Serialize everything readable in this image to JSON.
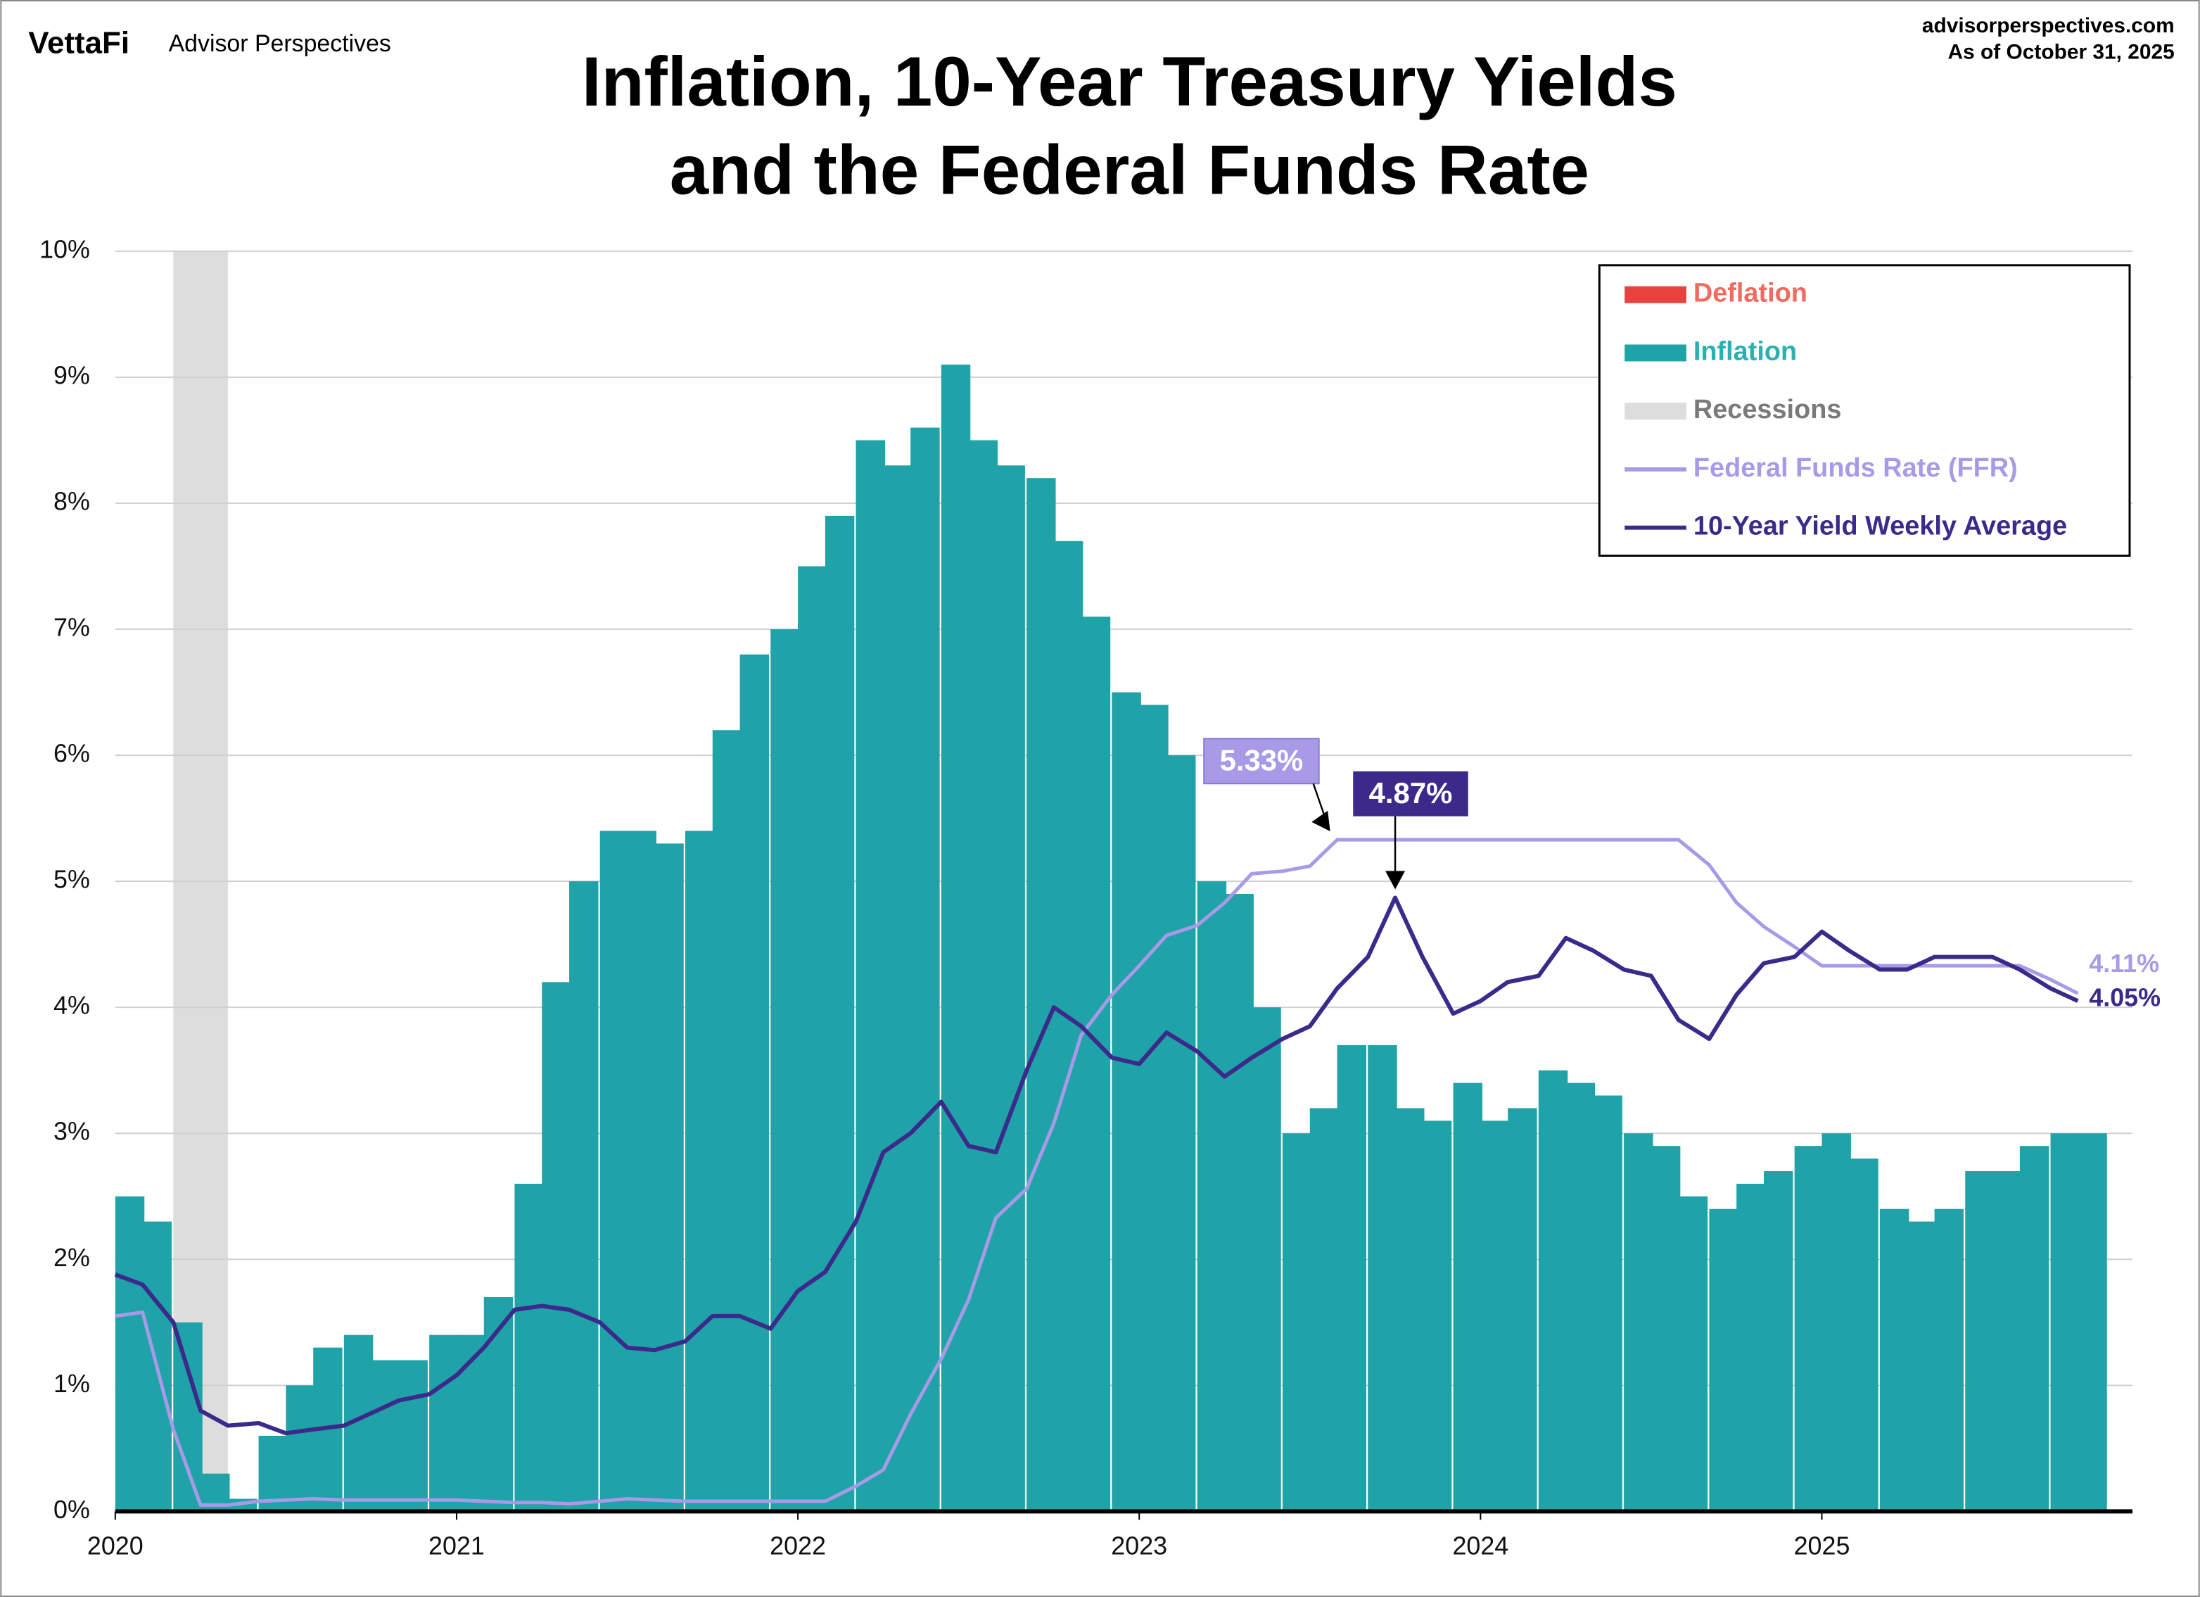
{
  "header": {
    "brand": "VettaFi",
    "brand_sub": "Advisor Perspectives",
    "site": "advisorperspectives.com",
    "date": "As of October 31, 2025"
  },
  "chart_data": {
    "type": "area-line",
    "title": [
      "Inflation, 10-Year Treasury Yields",
      "and the Federal Funds Rate"
    ],
    "x": [
      2020.0,
      2020.08,
      2020.17,
      2020.25,
      2020.33,
      2020.42,
      2020.5,
      2020.58,
      2020.67,
      2020.75,
      2020.83,
      2020.92,
      2021.0,
      2021.08,
      2021.17,
      2021.25,
      2021.33,
      2021.42,
      2021.5,
      2021.58,
      2021.67,
      2021.75,
      2021.83,
      2021.92,
      2022.0,
      2022.08,
      2022.17,
      2022.25,
      2022.33,
      2022.42,
      2022.5,
      2022.58,
      2022.67,
      2022.75,
      2022.83,
      2022.92,
      2023.0,
      2023.08,
      2023.17,
      2023.25,
      2023.33,
      2023.42,
      2023.5,
      2023.58,
      2023.67,
      2023.75,
      2023.83,
      2023.92,
      2024.0,
      2024.08,
      2024.17,
      2024.25,
      2024.33,
      2024.42,
      2024.5,
      2024.58,
      2024.67,
      2024.75,
      2024.83,
      2024.92,
      2025.0,
      2025.08,
      2025.17,
      2025.25,
      2025.33,
      2025.42,
      2025.5,
      2025.58,
      2025.67,
      2025.75
    ],
    "deflation": {
      "name": "Deflation",
      "color": "#e8423f",
      "text_color": "#f06a5f"
    },
    "recessions": {
      "name": "Recessions",
      "color": "#dddddd",
      "text_color": "#7a7a7a",
      "periods": [
        [
          2020.17,
          2020.33
        ]
      ]
    },
    "series": [
      {
        "name": "Inflation",
        "kind": "area",
        "color": "#1fa3a8",
        "text_color": "#2ab0b3",
        "values": [
          2.5,
          2.3,
          1.5,
          0.3,
          0.1,
          0.6,
          1.0,
          1.3,
          1.4,
          1.2,
          1.2,
          1.4,
          1.4,
          1.7,
          2.6,
          4.2,
          5.0,
          5.4,
          5.4,
          5.3,
          5.4,
          6.2,
          6.8,
          7.0,
          7.5,
          7.9,
          8.5,
          8.3,
          8.6,
          9.1,
          8.5,
          8.3,
          8.2,
          7.7,
          7.1,
          6.5,
          6.4,
          6.0,
          5.0,
          4.9,
          4.0,
          3.0,
          3.2,
          3.7,
          3.7,
          3.2,
          3.1,
          3.4,
          3.1,
          3.2,
          3.5,
          3.4,
          3.3,
          3.0,
          2.9,
          2.5,
          2.4,
          2.6,
          2.7,
          2.9,
          3.0,
          2.8,
          2.4,
          2.3,
          2.4,
          2.7,
          2.7,
          2.9,
          3.0,
          3.0
        ]
      },
      {
        "name": " Federal Funds Rate (FFR)",
        "kind": "line",
        "color": "#a89ae6",
        "text_color": "#a89ae6",
        "width": 2.5,
        "values": [
          1.55,
          1.58,
          0.65,
          0.05,
          0.05,
          0.08,
          0.09,
          0.1,
          0.09,
          0.09,
          0.09,
          0.09,
          0.09,
          0.08,
          0.07,
          0.07,
          0.06,
          0.08,
          0.1,
          0.09,
          0.08,
          0.08,
          0.08,
          0.08,
          0.08,
          0.08,
          0.2,
          0.33,
          0.77,
          1.21,
          1.68,
          2.33,
          2.56,
          3.08,
          3.78,
          4.1,
          4.33,
          4.57,
          4.65,
          4.83,
          5.06,
          5.08,
          5.12,
          5.33,
          5.33,
          5.33,
          5.33,
          5.33,
          5.33,
          5.33,
          5.33,
          5.33,
          5.33,
          5.33,
          5.33,
          5.33,
          5.13,
          4.83,
          4.64,
          4.48,
          4.33,
          4.33,
          4.33,
          4.33,
          4.33,
          4.33,
          4.33,
          4.33,
          4.22,
          4.11
        ]
      },
      {
        "name": "10-Year Yield Weekly Average",
        "kind": "line",
        "color": "#3c2a8a",
        "text_color": "#3c2a8a",
        "width": 3,
        "values": [
          1.88,
          1.8,
          1.5,
          0.8,
          0.68,
          0.7,
          0.62,
          0.65,
          0.68,
          0.78,
          0.88,
          0.93,
          1.08,
          1.3,
          1.6,
          1.63,
          1.6,
          1.5,
          1.3,
          1.28,
          1.35,
          1.55,
          1.55,
          1.45,
          1.75,
          1.9,
          2.3,
          2.85,
          3.0,
          3.25,
          2.9,
          2.85,
          3.5,
          4.0,
          3.85,
          3.6,
          3.55,
          3.8,
          3.65,
          3.45,
          3.6,
          3.75,
          3.85,
          4.15,
          4.4,
          4.87,
          4.4,
          3.95,
          4.05,
          4.2,
          4.25,
          4.55,
          4.45,
          4.3,
          4.25,
          3.9,
          3.75,
          4.1,
          4.35,
          4.4,
          4.6,
          4.45,
          4.3,
          4.3,
          4.4,
          4.4,
          4.4,
          4.3,
          4.15,
          4.05
        ]
      }
    ],
    "annotations": [
      {
        "text": "5.33%",
        "series": 1,
        "point": 43,
        "style": "box"
      },
      {
        "text": "4.87%",
        "series": 2,
        "point": 45,
        "style": "box"
      },
      {
        "text": "4.11%",
        "series": 1,
        "point": 69,
        "style": "end"
      },
      {
        "text": "4.05%",
        "series": 2,
        "point": 69,
        "style": "end"
      }
    ],
    "xlim": [
      2020,
      2025.91
    ],
    "xticks": [
      2020,
      2021,
      2022,
      2023,
      2024,
      2025
    ],
    "ylim": [
      0,
      10
    ],
    "yticks": [
      {
        "value": 0,
        "label": "0%"
      },
      {
        "value": 1,
        "label": "1%"
      },
      {
        "value": 2,
        "label": "2%"
      },
      {
        "value": 3,
        "label": "3%"
      },
      {
        "value": 4,
        "label": "4%"
      },
      {
        "value": 5,
        "label": "5%"
      },
      {
        "value": 6,
        "label": "6%"
      },
      {
        "value": 7,
        "label": "7%"
      },
      {
        "value": 8,
        "label": "8%"
      },
      {
        "value": 9,
        "label": "9%"
      },
      {
        "value": 10,
        "label": "10%"
      }
    ],
    "grid": true,
    "legend": "top-right"
  }
}
